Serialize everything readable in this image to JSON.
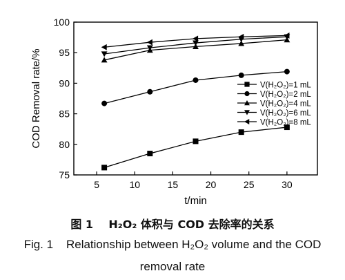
{
  "chart_data": {
    "type": "line",
    "x_label": "t/min",
    "y_label": "COD Removal rate/%",
    "xlim": [
      2,
      34
    ],
    "ylim": [
      75,
      100
    ],
    "x_ticks": [
      5,
      10,
      15,
      20,
      25,
      30
    ],
    "y_ticks": [
      75,
      80,
      85,
      90,
      95,
      100
    ],
    "grid": false,
    "legend_position": "right",
    "series": [
      {
        "name": "V(H₂O₂)=1 mL",
        "marker": "square",
        "x": [
          6,
          12,
          18,
          24,
          30
        ],
        "y": [
          76.2,
          78.5,
          80.5,
          82.0,
          82.8
        ]
      },
      {
        "name": "V(H₂O₂)=2 mL",
        "marker": "circle",
        "x": [
          6,
          12,
          18,
          24,
          30
        ],
        "y": [
          86.7,
          88.6,
          90.5,
          91.3,
          91.9
        ]
      },
      {
        "name": "V(H₂O₂)=4 mL",
        "marker": "triangle-up",
        "x": [
          6,
          12,
          18,
          24,
          30
        ],
        "y": [
          93.8,
          95.4,
          96.0,
          96.5,
          97.1
        ]
      },
      {
        "name": "V(H₂O₂)=6 mL",
        "marker": "triangle-down",
        "x": [
          6,
          12,
          18,
          24,
          30
        ],
        "y": [
          94.8,
          95.8,
          96.6,
          97.2,
          97.6
        ]
      },
      {
        "name": "V(H₂O₂)=8 mL",
        "marker": "triangle-left",
        "x": [
          6,
          12,
          18,
          24,
          30
        ],
        "y": [
          95.9,
          96.7,
          97.3,
          97.6,
          97.8
        ]
      }
    ]
  },
  "caption": {
    "cn": "图 1    H₂O₂ 体积与 COD 去除率的关系",
    "en_line1": "Fig. 1    Relationship between H₂O₂ volume and the COD",
    "en_line2": "removal rate"
  }
}
